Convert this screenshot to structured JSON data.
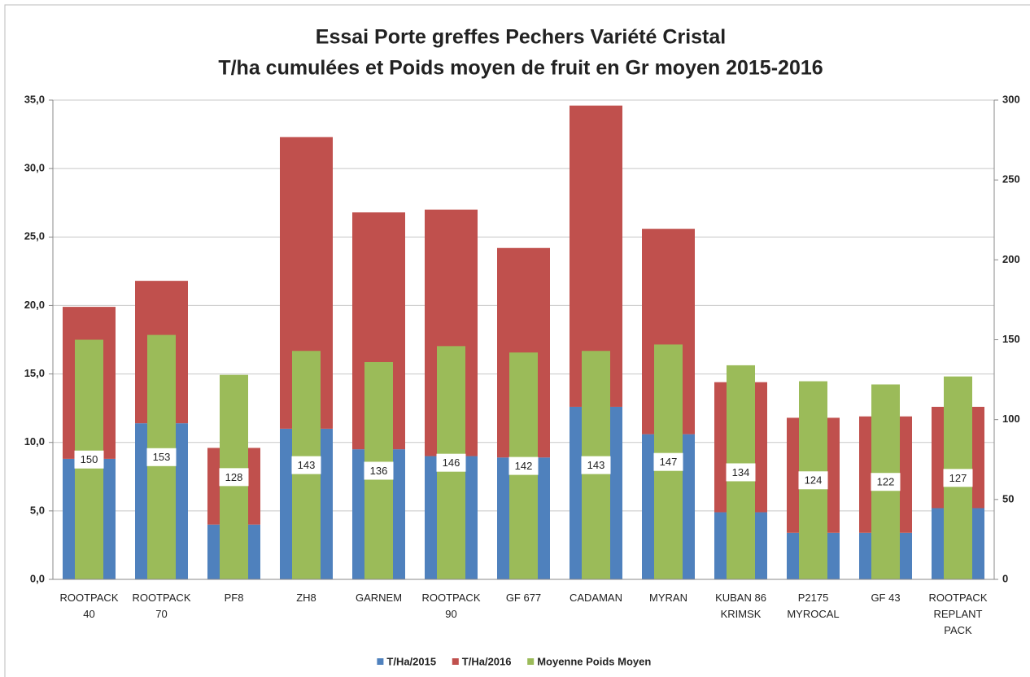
{
  "chart_data": {
    "type": "stacked_bar_with_overlay",
    "title": "Essai Porte greffes Pechers Variété Cristal",
    "subtitle": "T/ha  cumulées et Poids moyen de fruit en Gr moyen 2015-2016",
    "categories": [
      "ROOTPACK\n40",
      "ROOTPACK\n70",
      "PF8",
      "ZH8",
      "GARNEM",
      "ROOTPACK\n90",
      "GF 677",
      "CADAMAN",
      "MYRAN",
      "KUBAN 86\nKRIMSK",
      "P2175\nMYROCAL",
      "GF 43",
      "ROOTPACK\nREPLANT\nPACK"
    ],
    "series": [
      {
        "name": "T/Ha/2015",
        "color": "#4f81bd",
        "stack": true,
        "values": [
          8.8,
          11.4,
          4.0,
          11.0,
          9.5,
          9.0,
          8.9,
          12.6,
          10.6,
          4.9,
          3.4,
          3.4,
          5.2
        ]
      },
      {
        "name": "T/Ha/2016",
        "color": "#c0504d",
        "stack": true,
        "values": [
          11.1,
          10.4,
          5.6,
          21.3,
          17.3,
          18.0,
          15.3,
          22.0,
          15.0,
          9.5,
          8.4,
          8.5,
          7.4
        ]
      },
      {
        "name": "Moyenne Poids Moyen",
        "color": "#9bbb59",
        "axis": "y2",
        "data_labels": true,
        "values": [
          150,
          153,
          128,
          143,
          136,
          146,
          142,
          143,
          147,
          134,
          124,
          122,
          127
        ]
      }
    ],
    "ylim": [
      0,
      35
    ],
    "yticks": [
      {
        "value": 0,
        "label": "0,0"
      },
      {
        "value": 5,
        "label": "5,0"
      },
      {
        "value": 10,
        "label": "10,0"
      },
      {
        "value": 15,
        "label": "15,0"
      },
      {
        "value": 20,
        "label": "20,0"
      },
      {
        "value": 25,
        "label": "25,0"
      },
      {
        "value": 30,
        "label": "30,0"
      },
      {
        "value": 35,
        "label": "35,0"
      }
    ],
    "y2lim": [
      0,
      300
    ],
    "y2ticks": [
      0,
      50,
      100,
      150,
      200,
      250,
      300
    ],
    "grid": true,
    "legend": "bottom"
  }
}
